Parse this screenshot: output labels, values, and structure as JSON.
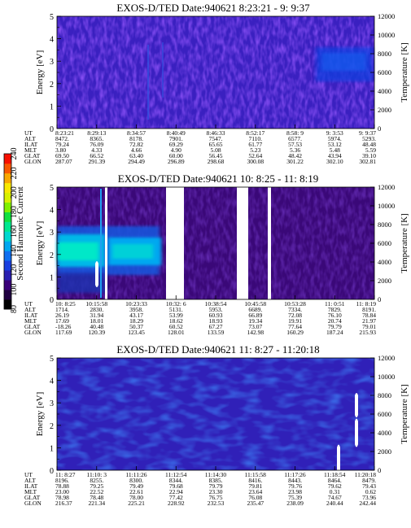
{
  "chart_data": {
    "type": "heatmap",
    "colorbar": {
      "label": "Second Harmonic Current",
      "range": [
        80,
        240
      ],
      "ticks": [
        80,
        100,
        120,
        140,
        160,
        180,
        200,
        220,
        240
      ],
      "colors": [
        "#000000",
        "#200040",
        "#3a0078",
        "#2a1fb0",
        "#1a40e0",
        "#1070f0",
        "#00a8f0",
        "#00d8d0",
        "#00e890",
        "#10e040",
        "#80f000",
        "#d8f000",
        "#f8e800",
        "#f8a800",
        "#f85800",
        "#f81000"
      ]
    },
    "panels": [
      {
        "title": "EXOS-D/TED   Date:940621   8:23:21 - 9: 9:37",
        "ylabel": "Energy [eV]",
        "y2label": "Temperature [K]",
        "ylim": [
          0,
          5
        ],
        "y2lim": [
          0,
          12000
        ],
        "yticks": [
          "0",
          "1",
          "2",
          "3",
          "4",
          "5"
        ],
        "y2ticks": [
          "0",
          "2000",
          "4000",
          "6000",
          "8000",
          "10000",
          "12000"
        ],
        "table_rows": [
          "UT",
          "ALT",
          "ILAT",
          "MLT",
          "GLAT",
          "GLON"
        ],
        "columns": [
          [
            "8:23:21",
            "8472.",
            "79.24",
            "3.80",
            "69.50",
            "287.07"
          ],
          [
            "8:29:13",
            "8365.",
            "76.09",
            "4.33",
            "66.52",
            "291.39"
          ],
          [
            "8:34:57",
            "8178.",
            "72.82",
            "4.66",
            "63.40",
            "294.49"
          ],
          [
            "8:40:49",
            "7901.",
            "69.29",
            "4.90",
            "60.00",
            "296.89"
          ],
          [
            "8:46:33",
            "7547.",
            "65.65",
            "5.08",
            "56.45",
            "298.68"
          ],
          [
            "8:52:17",
            "7110.",
            "61.77",
            "5.23",
            "52.64",
            "300.08"
          ],
          [
            "8:58: 9",
            "6577.",
            "57.53",
            "5.36",
            "48.42",
            "301.22"
          ],
          [
            "9: 3:53",
            "5974.",
            "53.12",
            "5.48",
            "43.94",
            "302.10"
          ],
          [
            "9: 9:37",
            "5293.",
            "48.48",
            "5.59",
            "39.10",
            "302.81"
          ]
        ]
      },
      {
        "title": "EXOS-D/TED   Date:940621   10: 8:25 - 11: 8:19",
        "ylabel": "Energy [eV]",
        "y2label": "Temperature [K]",
        "ylim": [
          0,
          5
        ],
        "y2lim": [
          0,
          12000
        ],
        "yticks": [
          "0",
          "1",
          "2",
          "3",
          "4",
          "5"
        ],
        "y2ticks": [
          "0",
          "2000",
          "4000",
          "6000",
          "8000",
          "10000",
          "12000"
        ],
        "table_rows": [
          "UT",
          "ALT",
          "ILAT",
          "MLT",
          "GLAT",
          "GLON"
        ],
        "columns": [
          [
            "10: 8:25",
            "1714.",
            "26.19",
            "17.69",
            "-18.26",
            "117.69"
          ],
          [
            "10:15:58",
            "2830.",
            "31.94",
            "18.01",
            "40.48",
            "120.39"
          ],
          [
            "10:23:33",
            "3958.",
            "43.17",
            "18.29",
            "50.37",
            "123.45"
          ],
          [
            "10:32: 6",
            "5131.",
            "53.99",
            "18.62",
            "60.52",
            "128.01"
          ],
          [
            "10:38:54",
            "5953.",
            "60.93",
            "18.93",
            "67.27",
            "133.59"
          ],
          [
            "10:45:58",
            "6689.",
            "66.89",
            "19.34",
            "73.07",
            "142.98"
          ],
          [
            "10:53:28",
            "7334.",
            "72.08",
            "19.91",
            "77.64",
            "160.29"
          ],
          [
            "11: 0:51",
            "7829.",
            "76.10",
            "20.74",
            "79.79",
            "187.24"
          ],
          [
            "11: 8:19",
            "8191.",
            "78.84",
            "21.97",
            "79.01",
            "215.93"
          ]
        ]
      },
      {
        "title": "EXOS-D/TED   Date:940621   11: 8:27 - 11:20:18",
        "ylabel": "Energy [eV]",
        "y2label": "Temperature [K]",
        "ylim": [
          0,
          5
        ],
        "y2lim": [
          0,
          12000
        ],
        "yticks": [
          "0",
          "1",
          "2",
          "3",
          "4",
          "5"
        ],
        "y2ticks": [
          "0",
          "2000",
          "4000",
          "6000",
          "8000",
          "10000",
          "12000"
        ],
        "table_rows": [
          "UT",
          "ALT",
          "ILAT",
          "MLT",
          "GLAT",
          "GLON"
        ],
        "columns": [
          [
            "11: 8:27",
            "8196.",
            "78.88",
            "23.00",
            "78.98",
            "216.37"
          ],
          [
            "11:10: 3",
            "8255.",
            "79.25",
            "22.52",
            "78.48",
            "221.34"
          ],
          [
            "11:11:26",
            "8300.",
            "79.49",
            "22.61",
            "78.00",
            "225.21"
          ],
          [
            "11:12:54",
            "8344.",
            "79.68",
            "22.94",
            "77.42",
            "228.92"
          ],
          [
            "11:14:30",
            "8385.",
            "79.79",
            "23.30",
            "76.75",
            "232.53"
          ],
          [
            "11:15:58",
            "8416.",
            "79.81",
            "23.64",
            "76.08",
            "235.47"
          ],
          [
            "11:17:26",
            "8443.",
            "79.76",
            "23.98",
            "75.39",
            "238.09"
          ],
          [
            "11:18:54",
            "8464.",
            "79.62",
            "0.31",
            "74.67",
            "240.44"
          ],
          [
            "11:20:18",
            "8479.",
            "79.43",
            "0.62",
            "73.96",
            "242.44"
          ]
        ]
      }
    ]
  }
}
